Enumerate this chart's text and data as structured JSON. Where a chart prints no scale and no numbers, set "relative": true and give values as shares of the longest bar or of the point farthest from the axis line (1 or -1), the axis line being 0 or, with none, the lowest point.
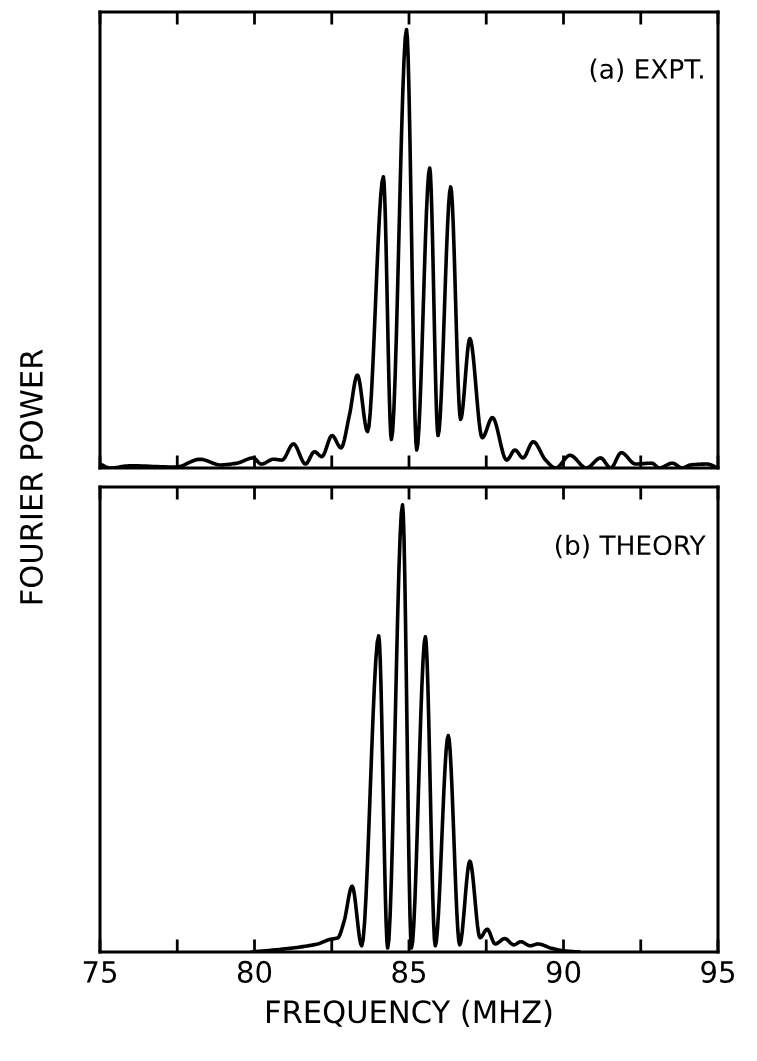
{
  "chart_data": [
    {
      "type": "line",
      "relative": true,
      "ylabel": "FOURIER POWER",
      "annotations": [
        "(a) EXPT."
      ],
      "xlim": [
        75,
        95
      ],
      "xticks": [
        {
          "value": 75,
          "label": null
        },
        {
          "value": 77.5,
          "label": null
        },
        {
          "value": 80,
          "label": null
        },
        {
          "value": 82.5,
          "label": null
        },
        {
          "value": 85,
          "label": null
        },
        {
          "value": 87.5,
          "label": null
        },
        {
          "value": 90,
          "label": null
        },
        {
          "value": 92.5,
          "label": null
        },
        {
          "value": 95,
          "label": null
        }
      ],
      "tick_labels": false,
      "grid": false,
      "legend": false,
      "series": [
        {
          "color": "#000000",
          "x": [
            75,
            75.33,
            75.99,
            77.45,
            78.24,
            78.9,
            79.43,
            79.96,
            80.22,
            80.62,
            80.89,
            81.26,
            81.65,
            81.94,
            82.18,
            82.51,
            82.8,
            83.07,
            83.33,
            83.66,
            84.17,
            84.43,
            84.92,
            85.25,
            85.67,
            85.94,
            86.35,
            86.67,
            86.97,
            87.37,
            87.7,
            88.16,
            88.43,
            88.69,
            89.02,
            89.42,
            89.75,
            90.21,
            90.74,
            91.2,
            91.53,
            91.87,
            92.33,
            92.86,
            93.1,
            93.52,
            93.85,
            94.11,
            94.64,
            95
          ],
          "values": [
            0.009,
            0,
            0.005,
            0.002,
            0.02,
            0.007,
            0.011,
            0.023,
            0.009,
            0.02,
            0.018,
            0.055,
            0.009,
            0.037,
            0.026,
            0.074,
            0.046,
            0.12,
            0.212,
            0.083,
            0.664,
            0.065,
            1.0,
            0.041,
            0.684,
            0.074,
            0.641,
            0.111,
            0.295,
            0.069,
            0.115,
            0.018,
            0.041,
            0.023,
            0.06,
            0.018,
            0,
            0.029,
            0,
            0.023,
            0,
            0.035,
            0.009,
            0.011,
            0,
            0.011,
            0,
            0.007,
            0.009,
            0
          ]
        }
      ]
    },
    {
      "type": "line",
      "relative": true,
      "xlabel": "FREQUENCY (MHZ)",
      "annotations": [
        "(b) THEORY"
      ],
      "xlim": [
        75,
        95
      ],
      "xticks": [
        75,
        {
          "value": 77.5,
          "label": null
        },
        80,
        {
          "value": 82.5,
          "label": null
        },
        85,
        {
          "value": 87.5,
          "label": null
        },
        90,
        {
          "value": 92.5,
          "label": null
        },
        95
      ],
      "tick_labels": "x",
      "grid": false,
      "legend": false,
      "series": [
        {
          "color": "#000000",
          "x": [
            79.92,
            81.24,
            82.04,
            82.43,
            82.7,
            82.9,
            83.16,
            83.47,
            84.02,
            84.31,
            84.79,
            85.08,
            85.53,
            85.85,
            86.27,
            86.64,
            86.97,
            87.3,
            87.53,
            87.79,
            88.1,
            88.39,
            88.62,
            88.92,
            89.18,
            89.58,
            89.97,
            90.5
          ],
          "values": [
            0,
            0.009,
            0.018,
            0.028,
            0.032,
            0.069,
            0.147,
            0.014,
            0.707,
            0.009,
            1.0,
            0.009,
            0.705,
            0.014,
            0.484,
            0.016,
            0.203,
            0.032,
            0.051,
            0.018,
            0.03,
            0.016,
            0.023,
            0.014,
            0.018,
            0.009,
            0.003,
            0
          ]
        }
      ]
    }
  ]
}
